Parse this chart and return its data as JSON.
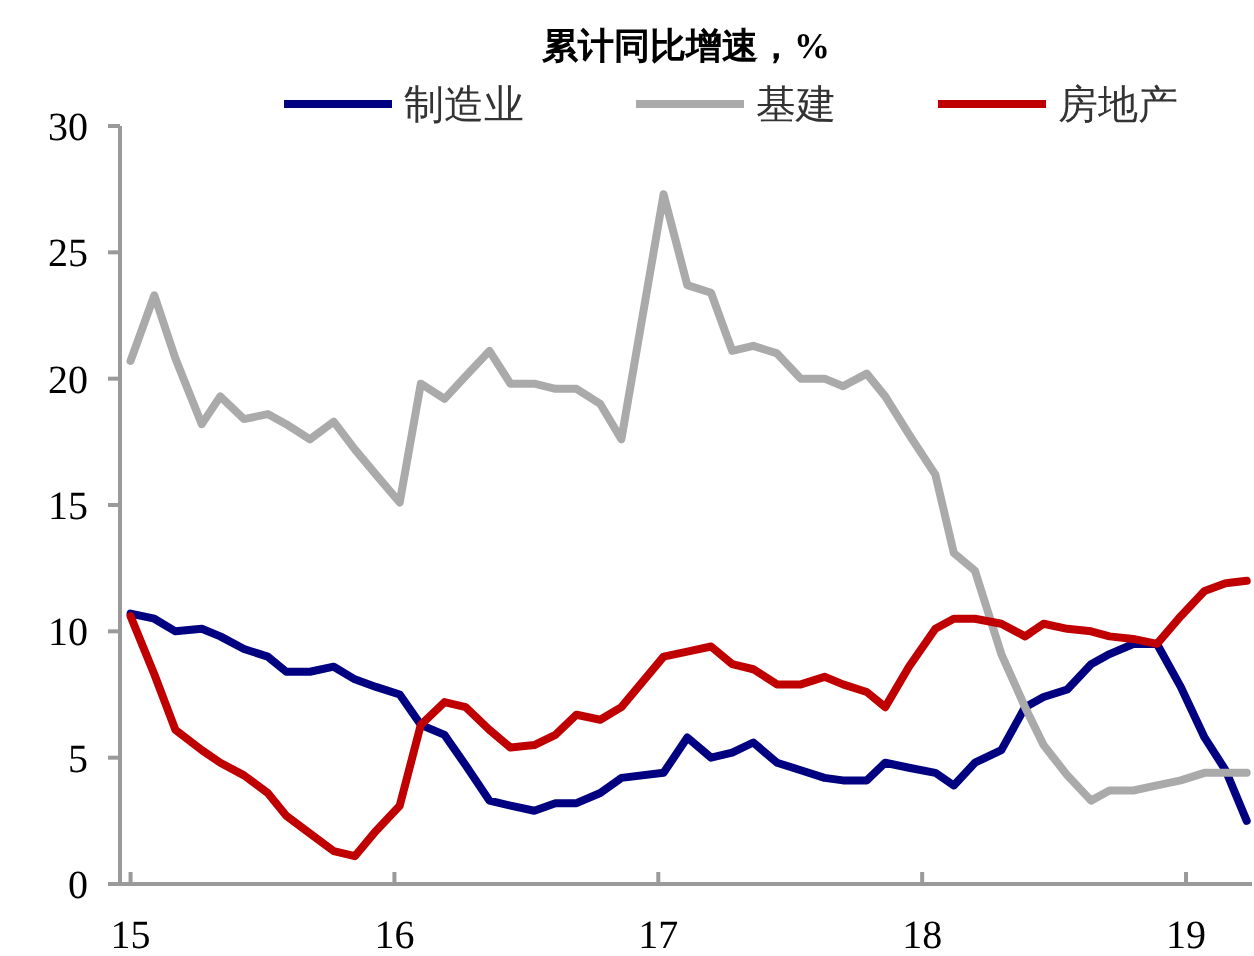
{
  "chart_data": {
    "type": "line",
    "title": "累计同比增速，%",
    "legend": "top",
    "grid": false,
    "marker": "none",
    "line_style": "solid",
    "x": [
      15.0,
      15.09,
      15.17,
      15.27,
      15.34,
      15.43,
      15.52,
      15.59,
      15.68,
      15.77,
      15.85,
      15.93,
      16.02,
      16.1,
      16.19,
      16.27,
      16.36,
      16.44,
      16.53,
      16.61,
      16.69,
      16.78,
      16.86,
      17.02,
      17.11,
      17.2,
      17.28,
      17.36,
      17.45,
      17.54,
      17.63,
      17.7,
      17.79,
      17.86,
      17.95,
      18.05,
      18.12,
      18.2,
      18.3,
      18.39,
      18.46,
      18.55,
      18.64,
      18.71,
      18.8,
      18.89,
      18.98,
      19.07,
      19.15,
      19.23
    ],
    "xlim": [
      14.96,
      19.25
    ],
    "xticks": [
      15,
      16,
      17,
      18,
      19
    ],
    "ylim": [
      0,
      30
    ],
    "yticks": [
      0,
      5,
      10,
      15,
      20,
      25,
      30
    ],
    "series": [
      {
        "name": "制造业",
        "color": "#000080",
        "values": [
          10.7,
          10.5,
          10.0,
          10.1,
          9.8,
          9.3,
          9.0,
          8.4,
          8.4,
          8.6,
          8.1,
          7.8,
          7.5,
          6.3,
          5.9,
          4.7,
          3.3,
          3.1,
          2.9,
          3.2,
          3.2,
          3.6,
          4.2,
          4.4,
          5.8,
          5.0,
          5.2,
          5.6,
          4.8,
          4.5,
          4.2,
          4.1,
          4.1,
          4.8,
          4.6,
          4.4,
          3.9,
          4.8,
          5.3,
          7.0,
          7.4,
          7.7,
          8.7,
          9.1,
          9.5,
          9.5,
          7.8,
          5.8,
          4.5,
          2.5
        ]
      },
      {
        "name": "基建",
        "color": "#aaaaaa",
        "values": [
          20.7,
          23.3,
          20.8,
          18.2,
          19.3,
          18.4,
          18.6,
          18.2,
          17.6,
          18.3,
          17.2,
          16.2,
          15.1,
          19.8,
          19.2,
          20.1,
          21.1,
          19.8,
          19.8,
          19.6,
          19.6,
          19.0,
          17.6,
          27.3,
          23.7,
          23.4,
          21.1,
          21.3,
          21.0,
          20.0,
          20.0,
          19.7,
          20.2,
          19.3,
          17.8,
          16.2,
          13.1,
          12.4,
          9.1,
          7.0,
          5.5,
          4.3,
          3.3,
          3.7,
          3.7,
          3.9,
          4.1,
          4.4,
          4.4,
          4.4
        ]
      },
      {
        "name": "房地产",
        "color": "#c00000",
        "values": [
          10.6,
          8.3,
          6.1,
          5.3,
          4.8,
          4.3,
          3.6,
          2.7,
          2.0,
          1.3,
          1.1,
          2.1,
          3.1,
          6.3,
          7.2,
          7.0,
          6.1,
          5.4,
          5.5,
          5.9,
          6.7,
          6.5,
          7.0,
          9.0,
          9.2,
          9.4,
          8.7,
          8.5,
          7.9,
          7.9,
          8.2,
          7.9,
          7.6,
          7.0,
          8.6,
          10.1,
          10.5,
          10.5,
          10.3,
          9.8,
          10.3,
          10.1,
          10.0,
          9.8,
          9.7,
          9.5,
          10.6,
          11.6,
          11.9,
          12.0
        ]
      }
    ]
  }
}
